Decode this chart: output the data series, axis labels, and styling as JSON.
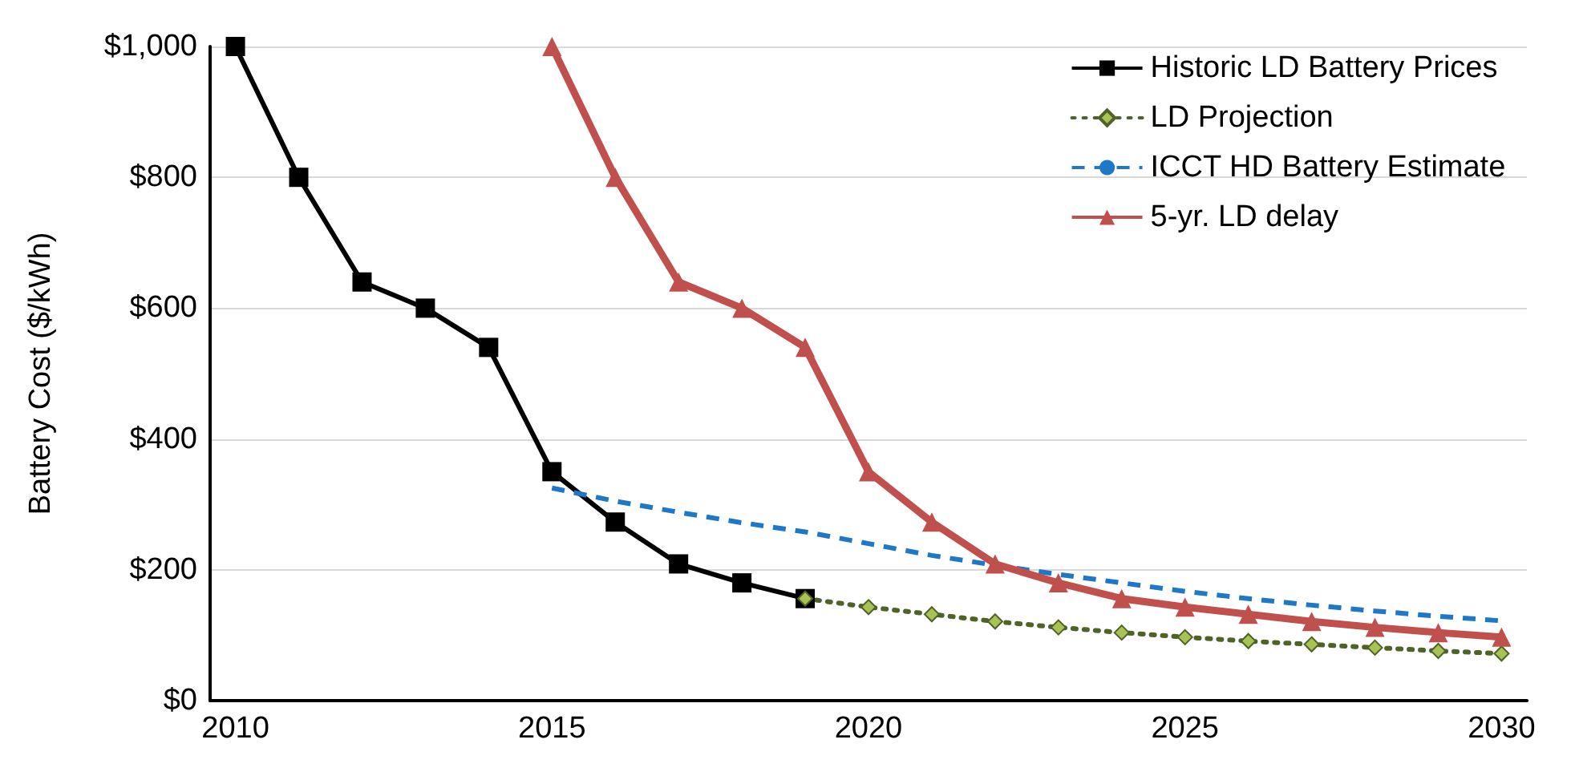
{
  "chart_data": {
    "type": "line",
    "ylabel": "Battery Cost ($/kWh)",
    "xlim": [
      2009.6,
      2030.4
    ],
    "xticks": [
      2010,
      2015,
      2020,
      2025,
      2030
    ],
    "ylim": [
      0,
      1000
    ],
    "yticks": [
      {
        "value": 0,
        "label": "$0"
      },
      {
        "value": 200,
        "label": "$200"
      },
      {
        "value": 400,
        "label": "$400"
      },
      {
        "value": 600,
        "label": "$600"
      },
      {
        "value": 800,
        "label": "$800"
      },
      {
        "value": 1000,
        "label": "$1,000"
      }
    ],
    "grid": "y",
    "legend": "top right",
    "series": [
      {
        "name": "Historic LD Battery Prices",
        "color": "#000000",
        "marker": "square",
        "line_style": "solid",
        "x": [
          2010,
          2011,
          2012,
          2013,
          2014,
          2015,
          2016,
          2017,
          2018,
          2019
        ],
        "values": [
          1000,
          800,
          640,
          600,
          540,
          350,
          273,
          209,
          180,
          156
        ]
      },
      {
        "name": "LD Projection",
        "color": "#4f6228",
        "marker": "diamond",
        "line_style": "dotted",
        "x": [
          2019,
          2020,
          2021,
          2022,
          2023,
          2024,
          2025,
          2026,
          2027,
          2028,
          2029,
          2030
        ],
        "values": [
          156,
          143,
          132,
          121,
          112,
          104,
          97,
          91,
          86,
          81,
          76,
          72
        ]
      },
      {
        "name": "ICCT HD Battery Estimate",
        "color": "#1f77c8",
        "marker": "none",
        "line_style": "dashed",
        "x": [
          2015,
          2016,
          2017,
          2018,
          2019,
          2020,
          2021,
          2022,
          2023,
          2024,
          2025,
          2026,
          2027,
          2028,
          2029,
          2030
        ],
        "values": [
          325,
          305,
          288,
          272,
          258,
          240,
          222,
          207,
          193,
          180,
          167,
          156,
          146,
          137,
          129,
          122
        ]
      },
      {
        "name": "5-yr. LD delay",
        "color": "#c0504d",
        "marker": "triangle",
        "line_style": "solid",
        "x": [
          2015,
          2016,
          2017,
          2018,
          2019,
          2020,
          2021,
          2022,
          2023,
          2024,
          2025,
          2026,
          2027,
          2028,
          2029,
          2030
        ],
        "values": [
          1000,
          800,
          640,
          600,
          540,
          350,
          273,
          209,
          180,
          156,
          143,
          132,
          121,
          112,
          104,
          97
        ]
      }
    ]
  }
}
